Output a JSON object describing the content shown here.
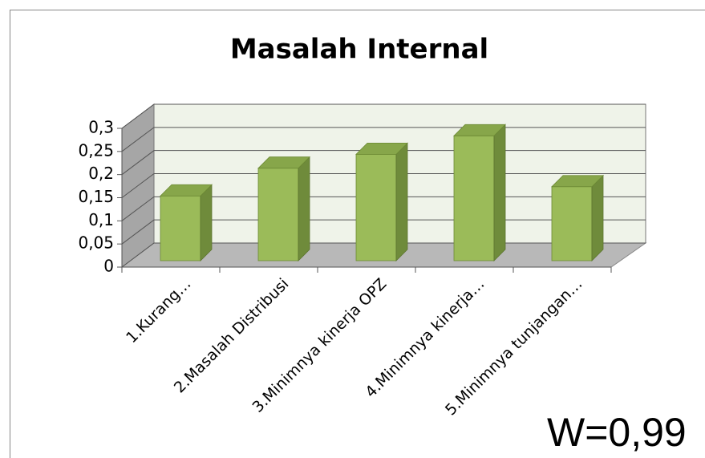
{
  "chart_data": {
    "type": "bar3d",
    "title": "Masalah Internal",
    "categories": [
      "1.Kurang…",
      "2.Masalah Distribusi",
      "3.Minimnya kinerja OPZ",
      "4.Minimnya kinerja…",
      "5.Minimnya tunjangan…"
    ],
    "values": [
      0.14,
      0.2,
      0.23,
      0.27,
      0.16
    ],
    "color": "#9bbb59",
    "ylim": [
      0,
      0.3
    ],
    "yticks": [
      0,
      {
        "value": 0.05,
        "label": "0,05"
      },
      {
        "value": 0.1,
        "label": "0,1"
      },
      {
        "value": 0.15,
        "label": "0,15"
      },
      {
        "value": 0.2,
        "label": "0,2"
      },
      {
        "value": 0.25,
        "label": "0,25"
      },
      {
        "value": 0.3,
        "label": "0,3"
      }
    ],
    "grid": true,
    "annotation": "W=0,99"
  }
}
